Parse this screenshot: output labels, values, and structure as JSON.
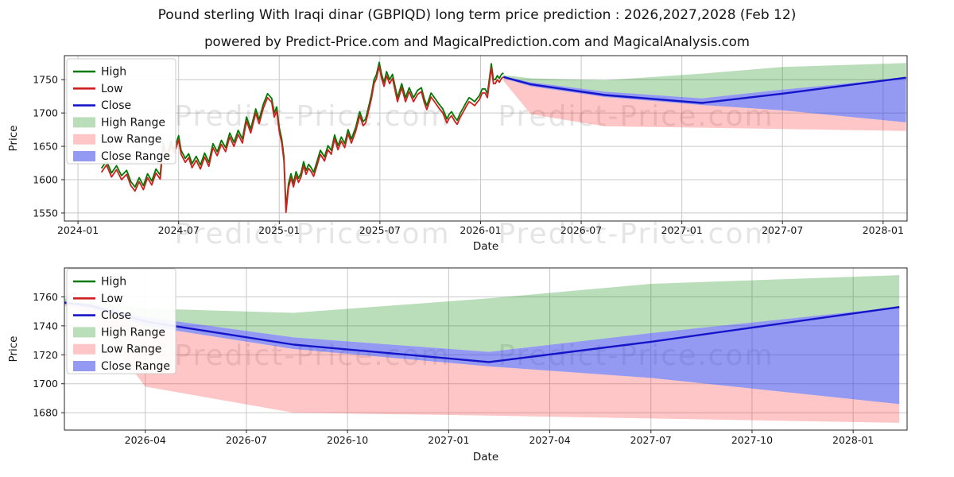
{
  "title": "Pound sterling With Iraqi dinar (GBPIQD) long term price prediction : 2026,2027,2028 (Feb 12)",
  "subtitle": "powered by Predict-Price.com and MagicalPrediction.com and MagicalAnalysis.com",
  "watermark_text": "Predict-Price.com",
  "colors": {
    "grid": "#c8c8c8",
    "spine": "#262626",
    "text": "#141414",
    "high_line": "#007a00",
    "low_line": "#d01f1f",
    "close_line": "#1414c8",
    "high_range_fill": "rgba(0,128,0,0.27)",
    "low_range_fill": "rgba(250,45,45,0.27)",
    "close_range_fill": "rgba(50,60,230,0.52)",
    "watermark": "rgba(110,110,110,0.18)"
  },
  "legend_items": [
    {
      "label": "High",
      "type": "line",
      "color": "#007a00"
    },
    {
      "label": "Low",
      "type": "line",
      "color": "#d01f1f"
    },
    {
      "label": "Close",
      "type": "line",
      "color": "#1414c8"
    },
    {
      "label": "High Range",
      "type": "patch",
      "color": "rgba(0,128,0,0.27)"
    },
    {
      "label": "Low Range",
      "type": "patch",
      "color": "rgba(250,45,45,0.27)"
    },
    {
      "label": "Close Range",
      "type": "patch",
      "color": "rgba(50,60,230,0.52)"
    }
  ],
  "chart_data": [
    {
      "type": "line",
      "name": "history-with-forecast",
      "xlabel": "Date",
      "ylabel": "Price",
      "yticks": [
        1550,
        1600,
        1650,
        1700,
        1750
      ],
      "xticks": [
        {
          "m": 0,
          "label": "2024-01"
        },
        {
          "m": 6,
          "label": "2024-07"
        },
        {
          "m": 12,
          "label": "2025-01"
        },
        {
          "m": 18,
          "label": "2025-07"
        },
        {
          "m": 24,
          "label": "2026-01"
        },
        {
          "m": 30,
          "label": "2026-07"
        },
        {
          "m": 36,
          "label": "2027-01"
        },
        {
          "m": 42,
          "label": "2027-07"
        },
        {
          "m": 48,
          "label": "2028-01"
        }
      ],
      "xlim": [
        -0.81,
        49.43
      ],
      "ylim": [
        1538,
        1786
      ],
      "historical": {
        "note": "months are decimal months since 2024-01-01; low = red Low line; High line = low + high_offset",
        "high_offset": 6,
        "months": [
          1.4,
          1.7,
          2.0,
          2.3,
          2.6,
          2.9,
          3.15,
          3.4,
          3.65,
          3.9,
          4.15,
          4.4,
          4.65,
          4.9,
          5.07,
          5.3,
          5.55,
          5.75,
          6.0,
          6.15,
          6.4,
          6.6,
          6.8,
          7.05,
          7.3,
          7.55,
          7.8,
          8.05,
          8.3,
          8.55,
          8.8,
          9.05,
          9.3,
          9.55,
          9.8,
          10.05,
          10.3,
          10.6,
          10.8,
          11.05,
          11.3,
          11.55,
          11.7,
          11.85,
          12.0,
          12.15,
          12.28,
          12.4,
          12.55,
          12.7,
          12.85,
          13.0,
          13.15,
          13.3,
          13.45,
          13.6,
          13.75,
          13.9,
          14.05,
          14.2,
          14.45,
          14.7,
          14.9,
          15.1,
          15.3,
          15.5,
          15.7,
          15.9,
          16.1,
          16.3,
          16.55,
          16.8,
          17.0,
          17.15,
          17.35,
          17.5,
          17.65,
          17.8,
          17.96,
          18.1,
          18.25,
          18.4,
          18.58,
          18.75,
          19.05,
          19.3,
          19.53,
          19.75,
          20.0,
          20.25,
          20.47,
          20.65,
          20.8,
          21.05,
          21.28,
          21.5,
          21.75,
          21.99,
          22.13,
          22.27,
          22.45,
          22.61,
          22.8,
          22.98,
          23.15,
          23.32,
          23.5,
          23.65,
          23.8,
          23.93,
          24.1,
          24.27,
          24.41,
          24.55,
          24.64,
          24.77,
          24.88,
          25.0,
          25.12,
          25.25,
          25.37
        ],
        "low": [
          1611,
          1622,
          1604,
          1615,
          1600,
          1608,
          1591,
          1583,
          1597,
          1585,
          1603,
          1592,
          1610,
          1601,
          1648,
          1630,
          1652,
          1640,
          1660,
          1638,
          1626,
          1633,
          1618,
          1629,
          1616,
          1634,
          1620,
          1648,
          1636,
          1653,
          1642,
          1664,
          1650,
          1668,
          1655,
          1688,
          1670,
          1700,
          1684,
          1707,
          1723,
          1716,
          1694,
          1703,
          1672,
          1655,
          1628,
          1551,
          1588,
          1603,
          1589,
          1606,
          1596,
          1604,
          1621,
          1608,
          1617,
          1612,
          1605,
          1617,
          1638,
          1628,
          1645,
          1638,
          1661,
          1645,
          1658,
          1648,
          1669,
          1655,
          1672,
          1696,
          1681,
          1685,
          1706,
          1722,
          1744,
          1752,
          1770,
          1752,
          1740,
          1756,
          1744,
          1752,
          1717,
          1738,
          1717,
          1732,
          1717,
          1728,
          1732,
          1715,
          1705,
          1724,
          1716,
          1708,
          1700,
          1685,
          1692,
          1696,
          1688,
          1683,
          1694,
          1702,
          1710,
          1717,
          1714,
          1711,
          1716,
          1720,
          1730,
          1730,
          1723,
          1750,
          1768,
          1744,
          1744,
          1750,
          1746,
          1752,
          1754
        ]
      },
      "forecast": {
        "months": [
          25.37,
          27.0,
          31.4,
          37.2,
          42.0,
          49.37
        ],
        "close": [
          1754,
          1743,
          1727,
          1715,
          1729,
          1753
        ],
        "high_range_upper": [
          1757,
          1752,
          1749,
          1759,
          1769,
          1775
        ],
        "high_range_lower": [
          1755,
          1746,
          1732,
          1722,
          1735,
          1753
        ],
        "close_range_upper": [
          1755,
          1746,
          1732,
          1722,
          1735,
          1753
        ],
        "close_range_lower": [
          1752,
          1740,
          1724,
          1712,
          1704,
          1686
        ],
        "low_range_upper": [
          1752,
          1740,
          1724,
          1712,
          1704,
          1686
        ],
        "low_range_lower": [
          1748,
          1698,
          1680,
          1678,
          1676,
          1673
        ]
      }
    },
    {
      "type": "line",
      "name": "forecast-detail",
      "xlabel": "Date",
      "ylabel": "Price",
      "yticks": [
        1680,
        1700,
        1720,
        1740,
        1760
      ],
      "xticks": [
        {
          "m": 27,
          "label": "2026-04"
        },
        {
          "m": 30,
          "label": "2026-07"
        },
        {
          "m": 33,
          "label": "2026-10"
        },
        {
          "m": 36,
          "label": "2027-01"
        },
        {
          "m": 39,
          "label": "2027-04"
        },
        {
          "m": 42,
          "label": "2027-07"
        },
        {
          "m": 45,
          "label": "2027-10"
        },
        {
          "m": 48,
          "label": "2028-01"
        }
      ],
      "xlim": [
        24.6,
        49.6
      ],
      "ylim": [
        1668,
        1780
      ],
      "forecast": {
        "months": [
          24.6,
          25.37,
          27.0,
          31.4,
          37.2,
          42.0,
          49.37
        ],
        "close": [
          1756,
          1754,
          1743,
          1727,
          1715,
          1729,
          1753
        ],
        "high_range_upper": [
          1759,
          1757,
          1752,
          1749,
          1759,
          1769,
          1775
        ],
        "high_range_lower": [
          1757,
          1755,
          1746,
          1732,
          1722,
          1735,
          1753
        ],
        "close_range_upper": [
          1757,
          1755,
          1746,
          1732,
          1722,
          1735,
          1753
        ],
        "close_range_lower": [
          1755,
          1752,
          1740,
          1724,
          1712,
          1704,
          1686
        ],
        "low_range_upper": [
          1755,
          1752,
          1740,
          1724,
          1712,
          1704,
          1686
        ],
        "low_range_lower": [
          1754,
          1748,
          1698,
          1680,
          1678,
          1676,
          1673
        ]
      }
    }
  ]
}
